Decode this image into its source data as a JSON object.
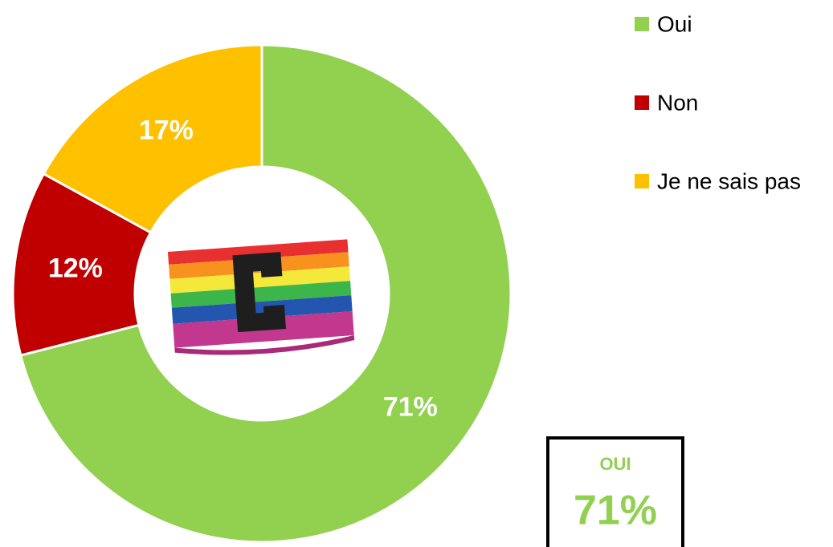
{
  "chart_data": {
    "type": "donut",
    "categories": [
      "Oui",
      "Non",
      "Je ne sais pas"
    ],
    "values": [
      71,
      12,
      17
    ],
    "value_labels": [
      "71%",
      "12%",
      "17%"
    ],
    "colors": [
      "#92d050",
      "#c00000",
      "#ffc000"
    ],
    "legend": "top-right",
    "annotation": {
      "label": "OUI",
      "text": "71%"
    }
  }
}
